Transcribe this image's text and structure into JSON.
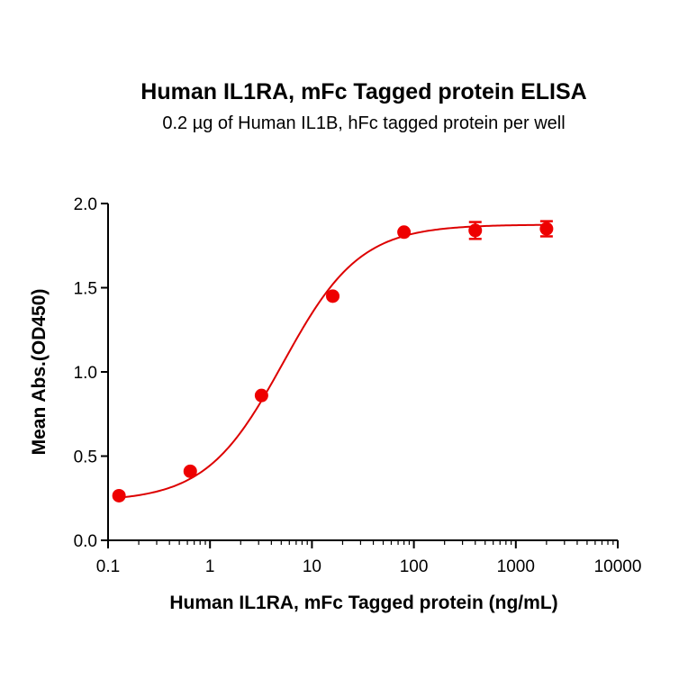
{
  "chart_data": {
    "type": "scatter",
    "title": "Human IL1RA, mFc Tagged protein ELISA",
    "subtitle": "0.2 µg of Human IL1B, hFc tagged protein per well",
    "xlabel": "Human IL1RA, mFc Tagged protein (ng/mL)",
    "ylabel": "Mean Abs.(OD450)",
    "x_scale": "log",
    "xlim": [
      0.1,
      10000
    ],
    "ylim": [
      0.0,
      2.0
    ],
    "x_ticks": [
      {
        "value": 0.1,
        "label": "0.1"
      },
      {
        "value": 1,
        "label": "1"
      },
      {
        "value": 10,
        "label": "10"
      },
      {
        "value": 100,
        "label": "100"
      },
      {
        "value": 1000,
        "label": "1000"
      },
      {
        "value": 10000,
        "label": "10000"
      }
    ],
    "y_ticks": [
      {
        "value": 0.0,
        "label": "0.0"
      },
      {
        "value": 0.5,
        "label": "0.5"
      },
      {
        "value": 1.0,
        "label": "1.0"
      },
      {
        "value": 1.5,
        "label": "1.5"
      },
      {
        "value": 2.0,
        "label": "2.0"
      }
    ],
    "points": [
      {
        "x": 0.128,
        "y": 0.265,
        "err": 0.0
      },
      {
        "x": 0.64,
        "y": 0.41,
        "err": 0.0
      },
      {
        "x": 3.2,
        "y": 0.86,
        "err": 0.0
      },
      {
        "x": 16,
        "y": 1.45,
        "err": 0.0
      },
      {
        "x": 80,
        "y": 1.83,
        "err": 0.0
      },
      {
        "x": 400,
        "y": 1.84,
        "err": 0.05
      },
      {
        "x": 2000,
        "y": 1.85,
        "err": 0.045
      }
    ],
    "fit": {
      "model": "4PL",
      "bottom": 0.23,
      "top": 1.875,
      "ec50": 5.2,
      "hill": 1.15
    },
    "colors": {
      "points": "#ee0000",
      "curve": "#dd0000",
      "axis": "#000000"
    }
  }
}
